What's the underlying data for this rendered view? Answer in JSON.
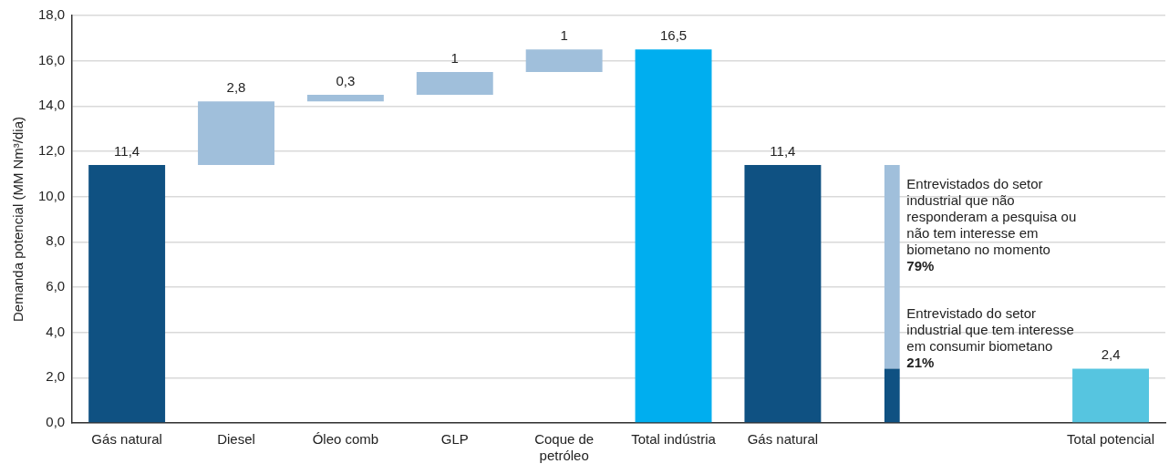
{
  "chart_data": {
    "type": "bar",
    "ylabel": "Demanda potencial (MM Nm³/dia)",
    "categories": [
      "Gás natural",
      "Diesel",
      "Óleo comb",
      "GLP",
      "Coque de petróleo",
      "Total indústria",
      "Gás natural",
      null,
      null,
      "Total potencial"
    ],
    "series": [
      {
        "colors": [
          "#0f5182",
          "#a0bfdb",
          "#a0bfdb",
          "#a0bfdb",
          "#a0bfdb",
          "#00aeef",
          "#0f5182",
          null,
          null,
          "#56c5e0"
        ],
        "values": [
          11.4,
          2.8,
          0.3,
          1,
          1,
          16.5,
          11.4,
          null,
          null,
          2.4
        ],
        "base": [
          0,
          11.4,
          14.2,
          14.5,
          15.5,
          0,
          0,
          null,
          null,
          0
        ],
        "value_labels": [
          "11,4",
          "2,8",
          "0,3",
          "1",
          "1",
          "16,5",
          "11,4",
          null,
          null,
          "2,4"
        ]
      },
      {
        "color": "#0f5182",
        "values": [
          null,
          null,
          null,
          null,
          null,
          null,
          null,
          2.4,
          null,
          null
        ],
        "base": [
          null,
          null,
          null,
          null,
          null,
          null,
          null,
          0,
          null,
          null
        ]
      },
      {
        "color": "#a0bfdb",
        "values": [
          null,
          null,
          null,
          null,
          null,
          null,
          null,
          9.0,
          null,
          null
        ],
        "base": [
          null,
          null,
          null,
          null,
          null,
          null,
          null,
          2.4,
          null,
          null
        ]
      }
    ],
    "ylim": [
      0,
      18
    ],
    "yticks": [
      {
        "value": 0,
        "label": "0,0"
      },
      {
        "value": 2,
        "label": "2,0"
      },
      {
        "value": 4,
        "label": "4,0"
      },
      {
        "value": 6,
        "label": "6,0"
      },
      {
        "value": 8,
        "label": "8,0"
      },
      {
        "value": 10,
        "label": "10,0"
      },
      {
        "value": 12,
        "label": "12,0"
      },
      {
        "value": 14,
        "label": "14,0"
      },
      {
        "value": 16,
        "label": "16,0"
      },
      {
        "value": 18,
        "label": "18,0"
      }
    ],
    "grid": "y",
    "legend": false,
    "annotations": [
      "Entrevistados do setor industrial que não responderam a pesquisa ou não tem interesse em biometano no momento",
      "79%",
      "Entrevistado do setor industrial que tem interesse em consumir biometano",
      "21%"
    ]
  }
}
